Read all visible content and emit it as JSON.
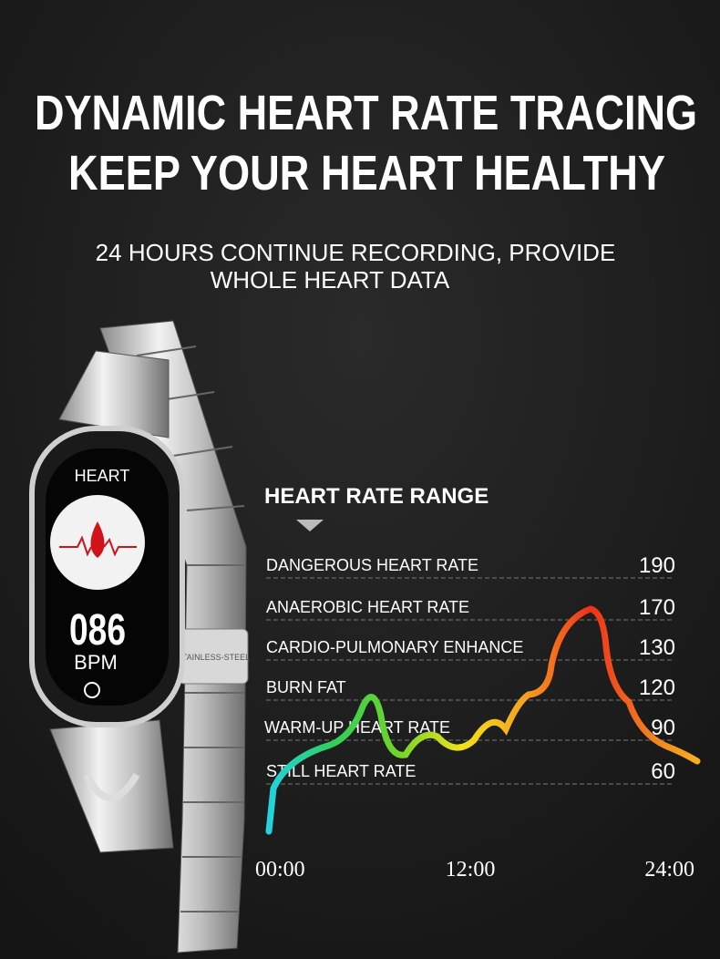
{
  "header": {
    "title_lines": [
      "DYNAMIC HEART RATE TRACING",
      "KEEP YOUR HEART HEALTHY"
    ],
    "subtitle_lines": [
      "24 HOURS CONTINUE RECORDING, PROVIDE",
      "WHOLE HEART DATA"
    ]
  },
  "watch": {
    "label": "HEART",
    "reading": "086",
    "unit": "BPM",
    "band_text": "STAINLESS-STEEL"
  },
  "range": {
    "title": "HEART RATE RANGE",
    "zones": [
      {
        "label": "DANGEROUS HEART RATE",
        "value": 190
      },
      {
        "label": "ANAEROBIC HEART RATE",
        "value": 170
      },
      {
        "label": "CARDIO-PULMONARY ENHANCE",
        "value": 130
      },
      {
        "label": "BURN FAT",
        "value": 120
      },
      {
        "label": "WARM-UP HEART RATE",
        "value": 90
      },
      {
        "label": "STILL HEART RATE",
        "value": 60
      }
    ],
    "times": [
      "00:00",
      "12:00",
      "24:00"
    ]
  }
}
